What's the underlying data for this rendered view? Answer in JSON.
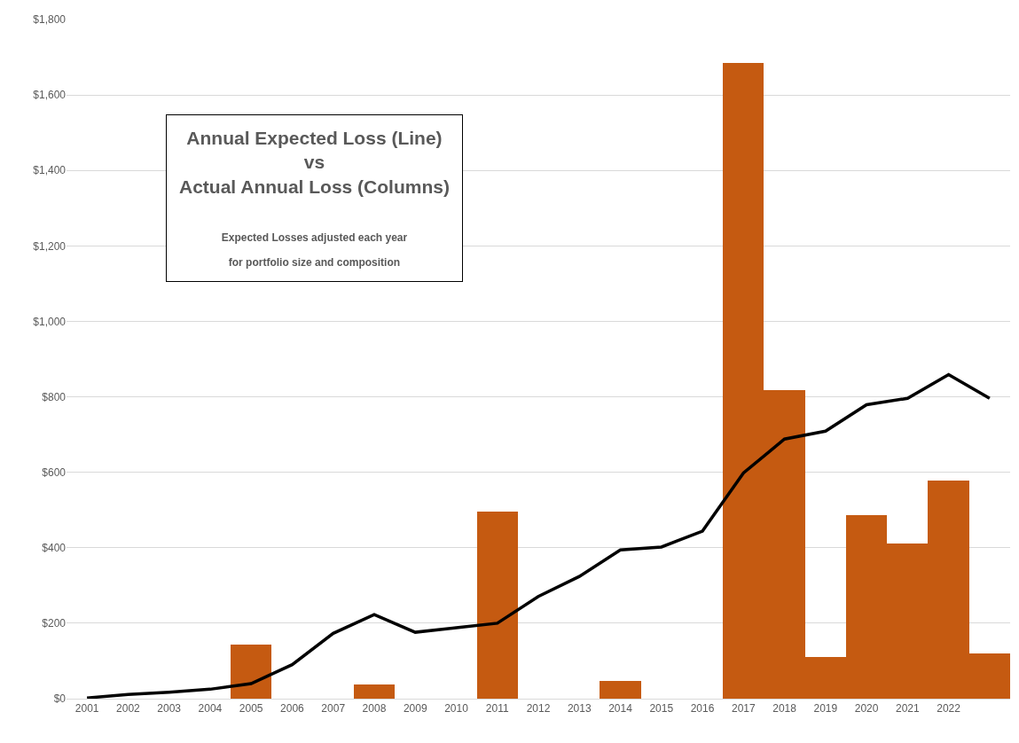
{
  "chart_data": {
    "type": "bar",
    "title": "Annual Expected Loss (Line)\nvs\nActual Annual Loss (Columns)",
    "subtitle": "Expected Losses adjusted each year\nfor portfolio size and composition",
    "categories": [
      "2001",
      "2002",
      "2003",
      "2004",
      "2005",
      "2006",
      "2007",
      "2008",
      "2009",
      "2010",
      "2011",
      "2012",
      "2013",
      "2014",
      "2015",
      "2016",
      "2017",
      "2018",
      "2019",
      "2020",
      "2021",
      "2022",
      null
    ],
    "series": [
      {
        "color": "#c55a11",
        "values": [
          null,
          null,
          null,
          null,
          143,
          null,
          null,
          37,
          null,
          null,
          496,
          null,
          null,
          48,
          null,
          null,
          1684,
          818,
          111,
          487,
          412,
          579,
          120
        ]
      },
      {
        "type": "line",
        "color": "#000000",
        "values": [
          2,
          11,
          17,
          25,
          40,
          90,
          173,
          223,
          176,
          188,
          200,
          271,
          324,
          394,
          402,
          444,
          598,
          688,
          709,
          779,
          796,
          859,
          796
        ]
      }
    ],
    "ylim": [
      0,
      1800
    ],
    "yticks": [
      {
        "value": 0,
        "label": "$0"
      },
      {
        "value": 200,
        "label": "$200"
      },
      {
        "value": 400,
        "label": "$400"
      },
      {
        "value": 600,
        "label": "$600"
      },
      {
        "value": 800,
        "label": "$800"
      },
      {
        "value": 1000,
        "label": "$1,000"
      },
      {
        "value": 1200,
        "label": "$1,200"
      },
      {
        "value": 1400,
        "label": "$1,400"
      },
      {
        "value": 1600,
        "label": "$1,600"
      },
      {
        "value": 1800,
        "label": "$1,800"
      }
    ],
    "grid": "y",
    "marker": "none",
    "line_style": "solid"
  }
}
